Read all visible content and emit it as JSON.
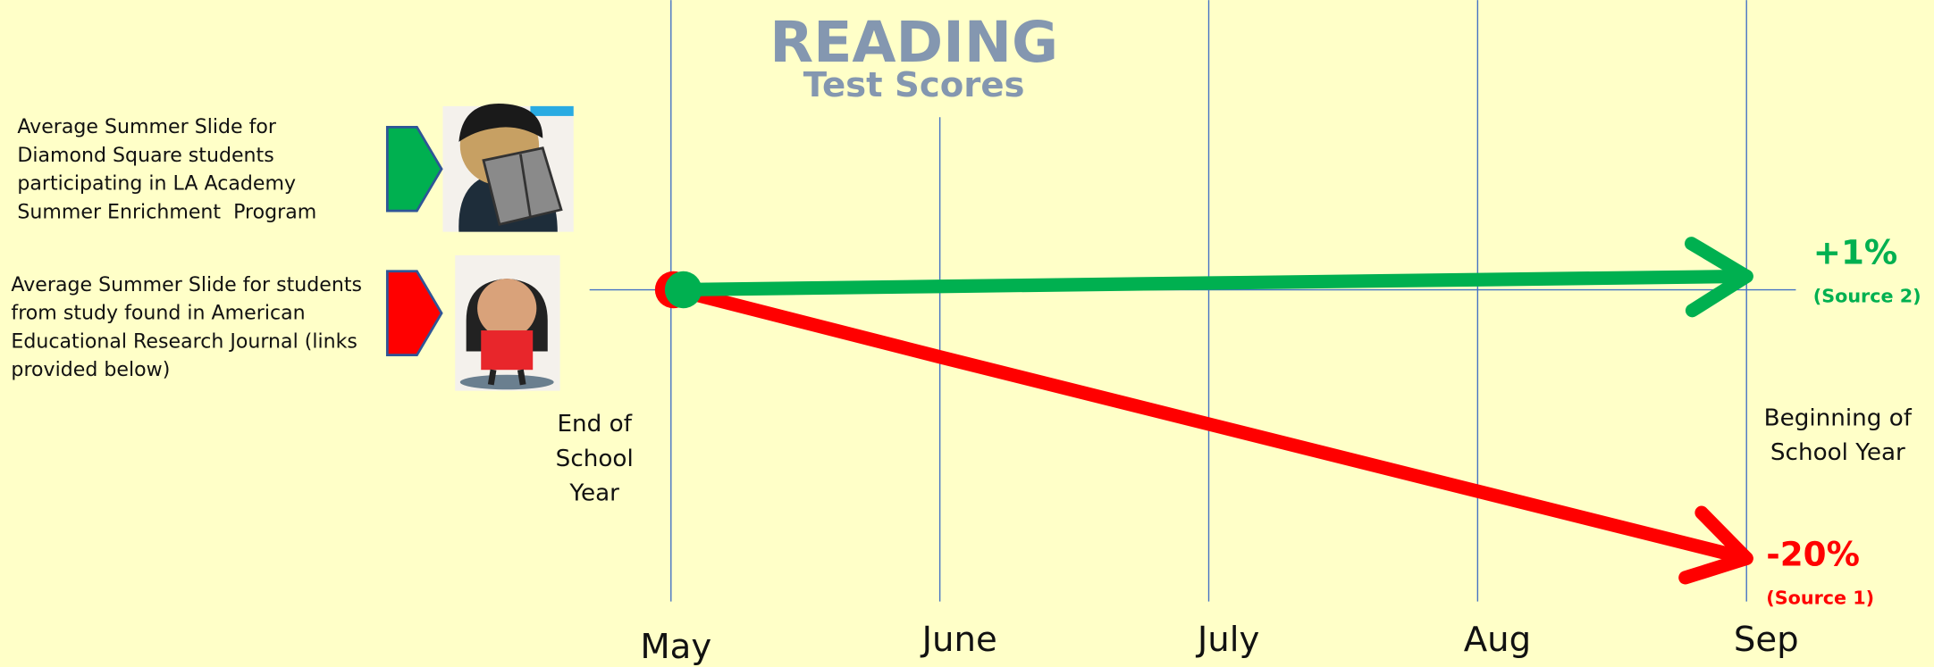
{
  "chart_data": {
    "type": "line",
    "title": "READING",
    "subtitle": "Test Scores",
    "categories": [
      "May",
      "June",
      "July",
      "Aug",
      "Sep"
    ],
    "series": [
      {
        "name": "Average Summer Slide for Diamond Square students participating in LA Academy Summer Enrichment  Program",
        "color": "#00b050",
        "values": [
          0,
          0.25,
          0.5,
          0.75,
          1
        ],
        "value_labels": [
          null,
          null,
          null,
          null,
          "+1%"
        ],
        "source": "(Source 2)"
      },
      {
        "name": "Average Summer Slide for students from study found in American Educational Research Journal (links provided below)",
        "color": "#ff0000",
        "values": [
          0,
          -5,
          -10,
          -15,
          -20
        ],
        "value_labels": [
          null,
          null,
          null,
          null,
          "-20%"
        ],
        "source": "(Source 1)"
      }
    ],
    "annotations": [
      "End of School Year",
      "Beginning of School Year"
    ]
  }
}
